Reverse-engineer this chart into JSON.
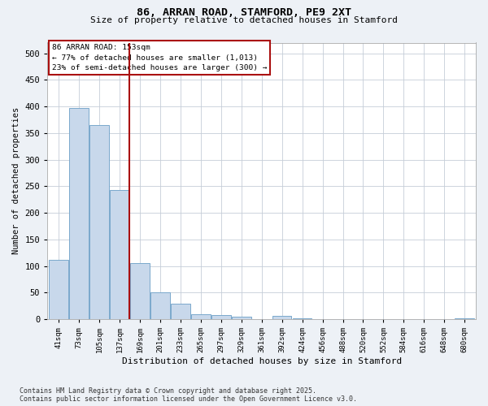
{
  "title1": "86, ARRAN ROAD, STAMFORD, PE9 2XT",
  "title2": "Size of property relative to detached houses in Stamford",
  "xlabel": "Distribution of detached houses by size in Stamford",
  "ylabel": "Number of detached properties",
  "categories": [
    "41sqm",
    "73sqm",
    "105sqm",
    "137sqm",
    "169sqm",
    "201sqm",
    "233sqm",
    "265sqm",
    "297sqm",
    "329sqm",
    "361sqm",
    "392sqm",
    "424sqm",
    "456sqm",
    "488sqm",
    "520sqm",
    "552sqm",
    "584sqm",
    "616sqm",
    "648sqm",
    "680sqm"
  ],
  "values": [
    111,
    397,
    365,
    243,
    106,
    50,
    30,
    10,
    8,
    5,
    0,
    6,
    2,
    0,
    0,
    0,
    0,
    0,
    0,
    0,
    2
  ],
  "bar_color": "#c8d8eb",
  "bar_edge_color": "#7aa8cc",
  "vline_x": 3.5,
  "vline_color": "#aa1111",
  "annotation_line1": "86 ARRAN ROAD: 153sqm",
  "annotation_line2": "← 77% of detached houses are smaller (1,013)",
  "annotation_line3": "23% of semi-detached houses are larger (300) →",
  "annotation_box_facecolor": "#ffffff",
  "annotation_box_edgecolor": "#aa1111",
  "ylim_max": 520,
  "yticks": [
    0,
    50,
    100,
    150,
    200,
    250,
    300,
    350,
    400,
    450,
    500
  ],
  "footer1": "Contains HM Land Registry data © Crown copyright and database right 2025.",
  "footer2": "Contains public sector information licensed under the Open Government Licence v3.0.",
  "bg_color": "#edf1f6",
  "plot_bg_color": "#ffffff",
  "grid_color": "#c5cdd8"
}
